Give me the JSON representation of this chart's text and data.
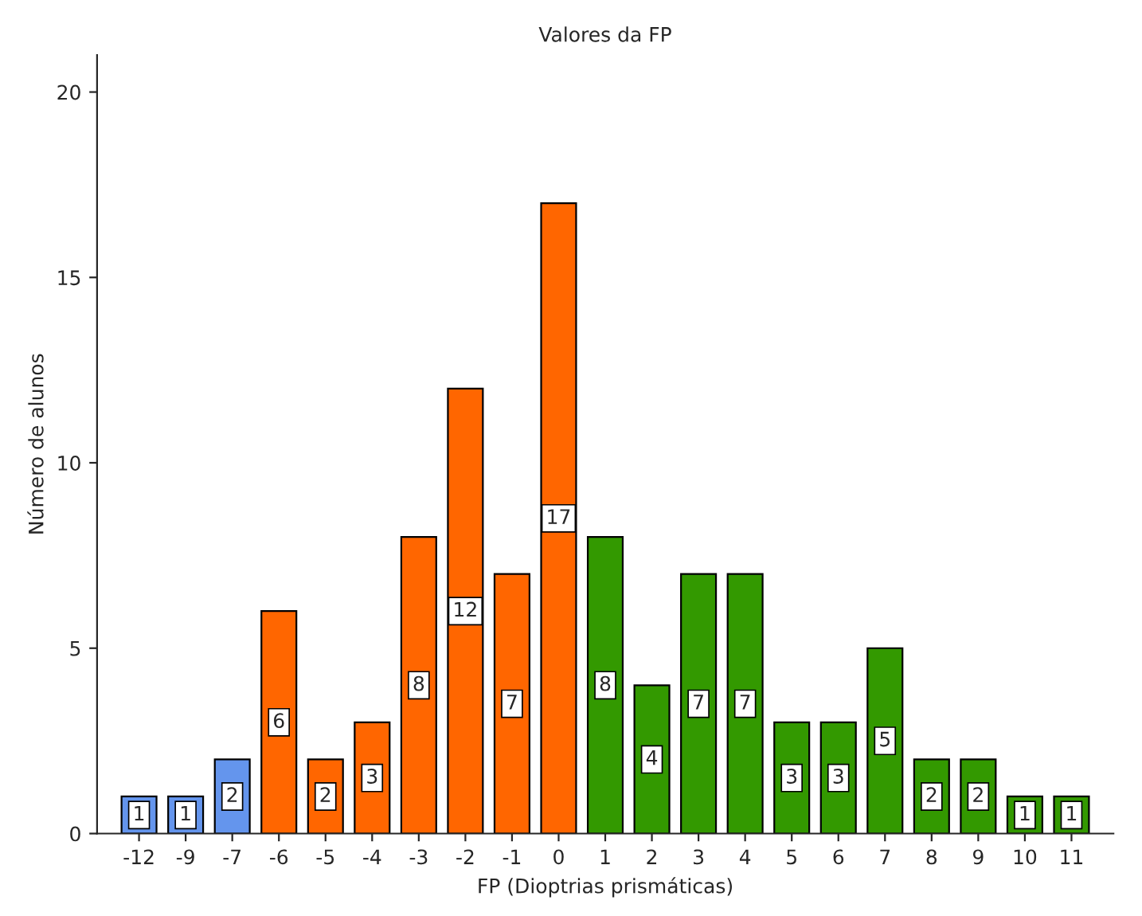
{
  "chart_data": {
    "type": "bar",
    "title": "Valores da FP",
    "xlabel": "FP (Dioptrias prismáticas)",
    "ylabel": "Número de alunos",
    "categories": [
      "-12",
      "-9",
      "-7",
      "-6",
      "-5",
      "-4",
      "-3",
      "-2",
      "-1",
      "0",
      "1",
      "2",
      "3",
      "4",
      "5",
      "6",
      "7",
      "8",
      "9",
      "10",
      "11"
    ],
    "values": [
      1,
      1,
      2,
      6,
      2,
      3,
      8,
      12,
      7,
      17,
      8,
      4,
      7,
      7,
      3,
      3,
      5,
      2,
      2,
      1,
      1
    ],
    "colors": [
      "#6495ed",
      "#6495ed",
      "#6495ed",
      "#ff6600",
      "#ff6600",
      "#ff6600",
      "#ff6600",
      "#ff6600",
      "#ff6600",
      "#ff6600",
      "#339900",
      "#339900",
      "#339900",
      "#339900",
      "#339900",
      "#339900",
      "#339900",
      "#339900",
      "#339900",
      "#339900",
      "#339900"
    ],
    "ylim": [
      0,
      21
    ],
    "yticks": [
      0,
      5,
      10,
      15,
      20
    ],
    "grid": false,
    "data_labels": true
  }
}
